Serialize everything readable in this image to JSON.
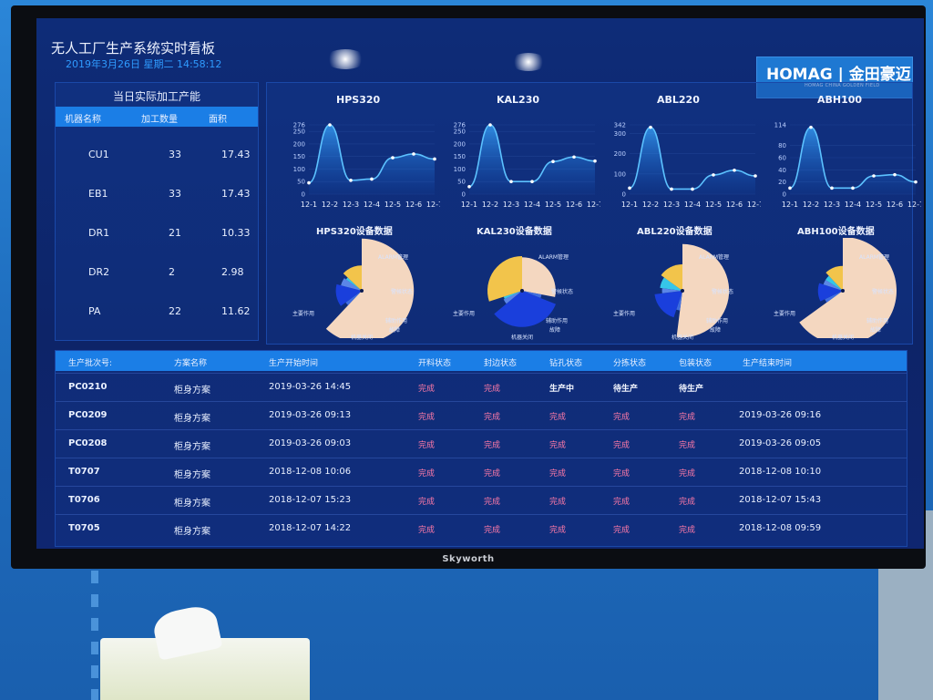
{
  "dashboard": {
    "title": "无人工厂生产系统实时看板",
    "datetime": "2019年3月26日 星期二 14:58:12"
  },
  "logo": {
    "main": "HOMAG | 金田豪迈",
    "sub": "HOMAG CHINA GOLDEN FIELD"
  },
  "tv": {
    "brand": "Skyworth"
  },
  "capacity": {
    "title": "当日实际加工产能",
    "headers": [
      "机器名称",
      "加工数量",
      "面积"
    ],
    "rows": [
      {
        "name": "CU1",
        "qty": "33",
        "area": "17.43"
      },
      {
        "name": "EB1",
        "qty": "33",
        "area": "17.43"
      },
      {
        "name": "DR1",
        "qty": "21",
        "area": "10.33"
      },
      {
        "name": "DR2",
        "qty": "2",
        "area": "2.98"
      },
      {
        "name": "PA",
        "qty": "22",
        "area": "11.62"
      }
    ]
  },
  "chart_data": [
    {
      "type": "area",
      "title": "HPS320",
      "x": [
        "12-1",
        "12-2",
        "12-3",
        "12-4",
        "12-5",
        "12-6",
        "12-7"
      ],
      "y": [
        45,
        276,
        55,
        60,
        145,
        160,
        140
      ],
      "yticks": [
        "276",
        "250",
        "200",
        "150",
        "100",
        "50",
        "0"
      ],
      "ylim": [
        0,
        276
      ]
    },
    {
      "type": "area",
      "title": "KAL230",
      "x": [
        "12-1",
        "12-2",
        "12-3",
        "12-4",
        "12-5",
        "12-6",
        "12-7"
      ],
      "y": [
        30,
        276,
        50,
        50,
        130,
        148,
        132
      ],
      "yticks": [
        "276",
        "250",
        "200",
        "150",
        "100",
        "50",
        "0"
      ],
      "ylim": [
        0,
        276
      ]
    },
    {
      "type": "area",
      "title": "ABL220",
      "x": [
        "12-1",
        "12-2",
        "12-3",
        "12-4",
        "12-5",
        "12-6",
        "12-7"
      ],
      "y": [
        30,
        330,
        25,
        25,
        95,
        118,
        90
      ],
      "yticks": [
        "342",
        "300",
        "200",
        "100",
        "0"
      ],
      "ylim": [
        0,
        342
      ]
    },
    {
      "type": "area",
      "title": "ABH100",
      "x": [
        "12-1",
        "12-2",
        "12-3",
        "12-4",
        "12-5",
        "12-6",
        "12-7"
      ],
      "y": [
        10,
        110,
        10,
        10,
        30,
        32,
        20
      ],
      "yticks": [
        "114",
        "80",
        "60",
        "40",
        "20",
        "0"
      ],
      "ylim": [
        0,
        114
      ]
    },
    {
      "type": "pie",
      "title": "HPS320设备数据",
      "labels": [
        "主要作用",
        "ALARM管理",
        "警候状态",
        "辅助作用",
        "故障",
        "机器关闭"
      ],
      "values": [
        62,
        3,
        14,
        6,
        2,
        13
      ],
      "colors": [
        "#f4d7c0",
        "#3f6de0",
        "#1a3fdc",
        "#5b86e8",
        "#36c6e8",
        "#f2c44b"
      ]
    },
    {
      "type": "pie",
      "title": "KAL230设备数据",
      "labels": [
        "主要作用",
        "ALARM管理",
        "警候状态",
        "辅助作用",
        "故障",
        "机器关闭"
      ],
      "values": [
        28,
        3,
        33,
        4,
        2,
        30
      ],
      "colors": [
        "#f4d7c0",
        "#3f6de0",
        "#1a3fdc",
        "#5b86e8",
        "#36c6e8",
        "#f2c44b"
      ]
    },
    {
      "type": "pie",
      "title": "ABL220设备数据",
      "labels": [
        "主要作用",
        "ALARM管理",
        "警候状态",
        "辅助作用",
        "故障",
        "机器关闭"
      ],
      "values": [
        52,
        3,
        18,
        4,
        8,
        15
      ],
      "colors": [
        "#f4d7c0",
        "#3f6de0",
        "#1a3fdc",
        "#5b86e8",
        "#36c6e8",
        "#f2c44b"
      ]
    },
    {
      "type": "pie",
      "title": "ABH100设备数据",
      "labels": [
        "主要作用",
        "ALARM管理",
        "警候状态",
        "辅助作用",
        "故障",
        "机器关闭"
      ],
      "values": [
        65,
        3,
        12,
        4,
        4,
        12
      ],
      "colors": [
        "#f4d7c0",
        "#3f6de0",
        "#1a3fdc",
        "#5b86e8",
        "#36c6e8",
        "#f2c44b"
      ]
    }
  ],
  "production": {
    "headers": [
      "生产批次号:",
      "方案名称",
      "生产开始时间",
      "开料状态",
      "封边状态",
      "钻孔状态",
      "分拣状态",
      "包装状态",
      "生产结束时间"
    ],
    "rows": [
      {
        "batch": "PC0210",
        "scheme": "柜身方案",
        "start": "2019-03-26 14:45",
        "cut": "完成",
        "edge": "完成",
        "drill": "生产中",
        "sort": "待生产",
        "pack": "待生产",
        "end": ""
      },
      {
        "batch": "PC0209",
        "scheme": "柜身方案",
        "start": "2019-03-26 09:13",
        "cut": "完成",
        "edge": "完成",
        "drill": "完成",
        "sort": "完成",
        "pack": "完成",
        "end": "2019-03-26 09:16"
      },
      {
        "batch": "PC0208",
        "scheme": "柜身方案",
        "start": "2019-03-26 09:03",
        "cut": "完成",
        "edge": "完成",
        "drill": "完成",
        "sort": "完成",
        "pack": "完成",
        "end": "2019-03-26 09:05"
      },
      {
        "batch": "T0707",
        "scheme": "柜身方案",
        "start": "2018-12-08 10:06",
        "cut": "完成",
        "edge": "完成",
        "drill": "完成",
        "sort": "完成",
        "pack": "完成",
        "end": "2018-12-08 10:10"
      },
      {
        "batch": "T0706",
        "scheme": "柜身方案",
        "start": "2018-12-07 15:23",
        "cut": "完成",
        "edge": "完成",
        "drill": "完成",
        "sort": "完成",
        "pack": "完成",
        "end": "2018-12-07 15:43"
      },
      {
        "batch": "T0705",
        "scheme": "柜身方案",
        "start": "2018-12-07 14:22",
        "cut": "完成",
        "edge": "完成",
        "drill": "完成",
        "sort": "完成",
        "pack": "完成",
        "end": "2018-12-08 09:59"
      }
    ]
  }
}
